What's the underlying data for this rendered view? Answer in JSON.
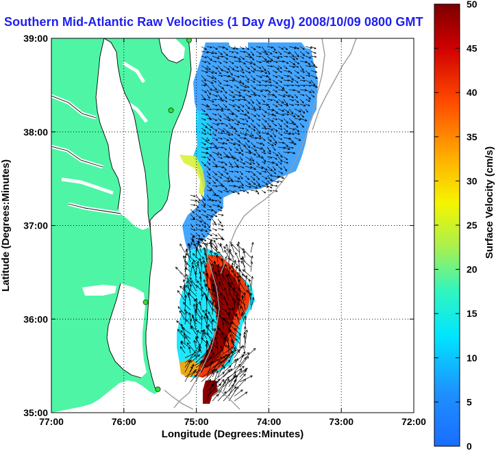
{
  "title": "Southern Mid-Atlantic Raw Velocities (1 Day Avg) 2008/10/09 0800 GMT",
  "x_axis": {
    "label": "Longitude (Degrees:Minutes)",
    "ticks": [
      "77:00",
      "76:00",
      "75:00",
      "74:00",
      "73:00",
      "72:00"
    ]
  },
  "y_axis": {
    "label": "Latitude (Degrees:Minutes)",
    "ticks": [
      "35:00",
      "36:00",
      "37:00",
      "38:00",
      "39:00"
    ]
  },
  "colorbar": {
    "label": "Surface Velocity (cm/s)",
    "ticks": [
      "0",
      "5",
      "10",
      "15",
      "20",
      "25",
      "30",
      "35",
      "40",
      "45",
      "50"
    ],
    "min": 0,
    "max": 50,
    "colormap": "jet"
  },
  "map": {
    "lon_range": [
      -77,
      -72
    ],
    "lat_range": [
      35,
      39
    ],
    "land_color": "#4ef5a5",
    "grid": "dotted",
    "colors": {
      "slow": "#3aa0ff",
      "medium": "#14e6ff",
      "fast": "#ff3000",
      "fastest": "#8c0000"
    },
    "stations": [
      {
        "lon": -75.1,
        "lat": 38.98
      },
      {
        "lon": -75.35,
        "lat": 38.23
      },
      {
        "lon": -75.7,
        "lat": 36.18
      },
      {
        "lon": -75.53,
        "lat": 35.25
      }
    ]
  }
}
